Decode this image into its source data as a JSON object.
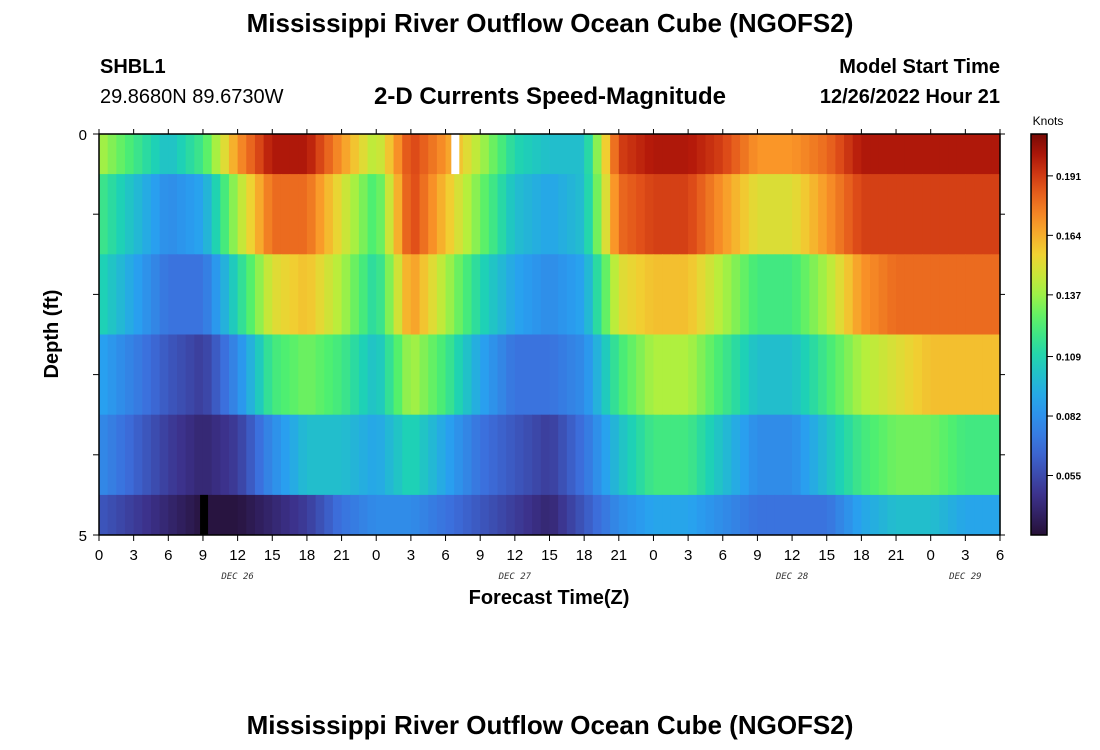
{
  "header": {
    "title": "Mississippi River Outflow Ocean Cube (NGOFS2)",
    "station_id": "SHBL1",
    "coords": "29.8680N  89.6730W",
    "subtitle": "2-D Currents Speed-Magnitude",
    "start_label": "Model Start Time",
    "start_value": "12/26/2022 Hour 21"
  },
  "footer": {
    "title_repeat": "Mississippi River Outflow Ocean Cube (NGOFS2)"
  },
  "colors": {
    "background": "#ffffff",
    "frame": "#000000",
    "missing_white": "#ffffff",
    "missing_black": "#000000"
  },
  "chart_data": {
    "type": "heatmap",
    "xlabel": "Forecast Time(Z)",
    "ylabel": "Depth (ft)",
    "x_tick_labels": [
      "0",
      "3",
      "6",
      "9",
      "12",
      "15",
      "18",
      "21",
      "0",
      "3",
      "6",
      "9",
      "12",
      "15",
      "18",
      "21",
      "0",
      "3",
      "6",
      "9",
      "12",
      "15",
      "18",
      "21",
      "0",
      "3",
      "6"
    ],
    "day_labels": [
      {
        "label": "DEC 26",
        "hour": 12
      },
      {
        "label": "DEC 27",
        "hour": 36
      },
      {
        "label": "DEC 28",
        "hour": 60
      },
      {
        "label": "DEC 29",
        "hour": 75
      }
    ],
    "x_range_hours": [
      0,
      78
    ],
    "y_tick_labels": [
      {
        "label": "0",
        "depth": 0
      },
      {
        "label": "5",
        "depth": 5
      }
    ],
    "y_range": [
      0,
      5
    ],
    "colorbar": {
      "unit": "Knots",
      "range": [
        0.028,
        0.21
      ],
      "ticks": [
        0.055,
        0.082,
        0.109,
        0.137,
        0.164,
        0.191
      ]
    },
    "depth_layers": [
      0.25,
      1.25,
      2.25,
      3.25,
      4.25,
      4.75
    ],
    "time_anchor_hours": [
      0,
      6,
      9,
      12,
      15,
      18,
      21,
      24,
      27,
      30,
      33,
      36,
      39,
      42,
      45,
      48,
      51,
      54,
      57,
      60,
      63,
      66,
      69,
      72,
      75,
      78
    ],
    "layers": [
      {
        "depth": "0-0.5 ft",
        "values": [
          0.14,
          0.1,
          0.12,
          0.17,
          0.2,
          0.2,
          0.17,
          0.14,
          0.19,
          0.17,
          0.14,
          0.11,
          0.1,
          0.1,
          0.19,
          0.2,
          0.2,
          0.19,
          0.17,
          0.17,
          0.18,
          0.2,
          0.2,
          0.2,
          0.2,
          0.2
        ]
      },
      {
        "depth": "0.5-1.5 ft",
        "values": [
          0.12,
          0.08,
          0.09,
          0.14,
          0.18,
          0.18,
          0.15,
          0.12,
          0.19,
          0.16,
          0.13,
          0.1,
          0.09,
          0.1,
          0.18,
          0.19,
          0.19,
          0.17,
          0.15,
          0.15,
          0.17,
          0.19,
          0.19,
          0.19,
          0.19,
          0.19
        ]
      },
      {
        "depth": "1.5-2.5 ft",
        "values": [
          0.11,
          0.07,
          0.07,
          0.11,
          0.15,
          0.16,
          0.14,
          0.11,
          0.17,
          0.14,
          0.11,
          0.09,
          0.08,
          0.09,
          0.15,
          0.16,
          0.16,
          0.14,
          0.12,
          0.12,
          0.14,
          0.17,
          0.18,
          0.18,
          0.18,
          0.18
        ]
      },
      {
        "depth": "2.5-3.5 ft",
        "values": [
          0.09,
          0.06,
          0.05,
          0.08,
          0.12,
          0.13,
          0.12,
          0.1,
          0.14,
          0.12,
          0.09,
          0.07,
          0.07,
          0.08,
          0.12,
          0.14,
          0.14,
          0.12,
          0.1,
          0.1,
          0.12,
          0.14,
          0.15,
          0.16,
          0.16,
          0.16
        ]
      },
      {
        "depth": "3.5-4.5 ft",
        "values": [
          0.08,
          0.05,
          0.04,
          0.05,
          0.08,
          0.1,
          0.1,
          0.09,
          0.11,
          0.09,
          0.07,
          0.06,
          0.05,
          0.07,
          0.1,
          0.12,
          0.12,
          0.1,
          0.08,
          0.08,
          0.1,
          0.12,
          0.13,
          0.13,
          0.12,
          0.12
        ]
      },
      {
        "depth": "4.5-5 ft",
        "values": [
          0.06,
          0.04,
          0.03,
          0.03,
          0.04,
          0.05,
          0.07,
          0.08,
          0.08,
          0.07,
          0.06,
          0.05,
          0.04,
          0.06,
          0.08,
          0.09,
          0.09,
          0.08,
          0.07,
          0.07,
          0.07,
          0.09,
          0.1,
          0.1,
          0.09,
          0.09
        ]
      }
    ],
    "missing_columns": [
      {
        "hour": 30.5,
        "layer": 0,
        "color": "white"
      },
      {
        "hour": 8.75,
        "layer": 5,
        "color": "black"
      }
    ]
  }
}
